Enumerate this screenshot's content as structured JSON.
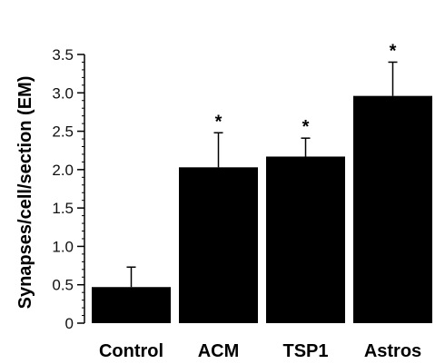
{
  "chart_data": {
    "type": "bar",
    "categories": [
      "Control",
      "ACM",
      "TSP1",
      "Astros"
    ],
    "values": [
      0.47,
      2.03,
      2.17,
      2.96
    ],
    "error_upper": [
      0.73,
      2.48,
      2.41,
      3.4
    ],
    "significance": [
      "",
      "*",
      "*",
      "*"
    ],
    "ylabel": "Synapses/cell/section (EM)",
    "ylim": [
      0,
      3.5
    ],
    "yticks": [
      "0",
      "0.5",
      "1.0",
      "1.5",
      "2.0",
      "2.5",
      "3.0",
      "3.5"
    ],
    "ytick_values": [
      0,
      0.5,
      1.0,
      1.5,
      2.0,
      2.5,
      3.0,
      3.5
    ],
    "minor_tick_step": 0.1,
    "bar_color": "#000000",
    "grid": false,
    "legend": "none"
  }
}
